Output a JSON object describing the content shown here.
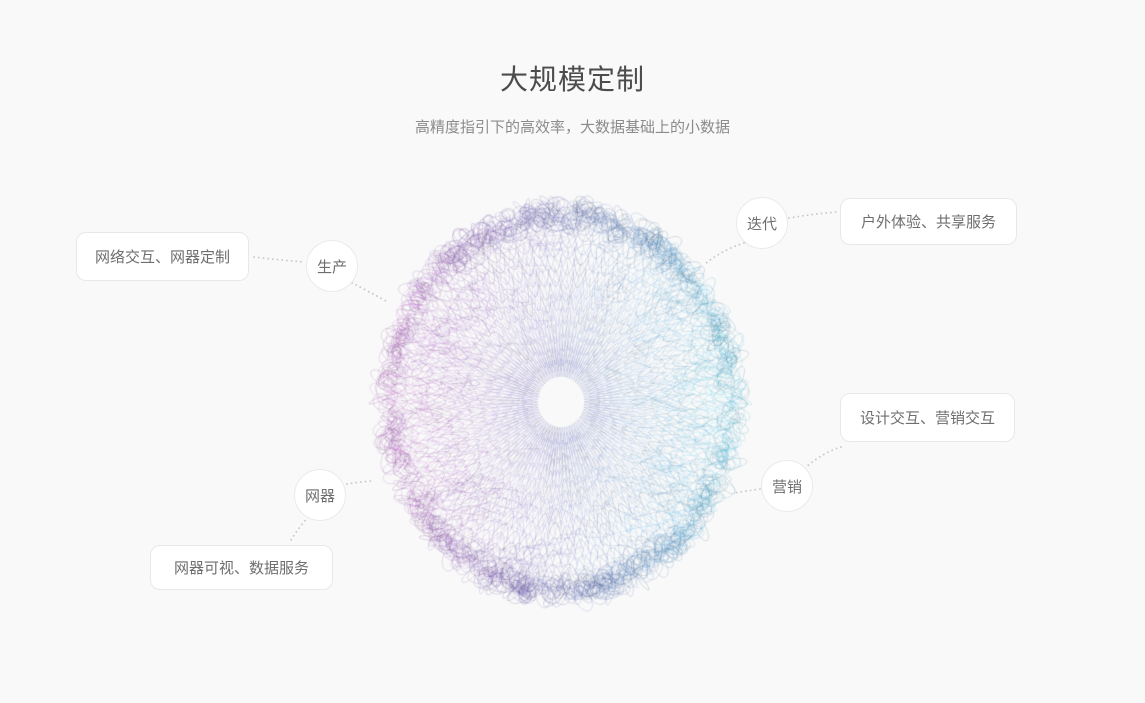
{
  "background": "#f9f9f9",
  "header": {
    "title": "大规模定制",
    "subtitle": "高精度指引下的高效率，大数据基础上的小数据"
  },
  "diagram": {
    "sphere": {
      "color_left": "#bb4fb8",
      "color_center": "#5f63b6",
      "color_right": "#3fc6de"
    },
    "connector_color": "#c8c8c8",
    "nodes": [
      {
        "label": "生产"
      },
      {
        "label": "迭代"
      },
      {
        "label": "营销"
      },
      {
        "label": "网器"
      }
    ],
    "callouts": [
      {
        "label": "网络交互、网器定制"
      },
      {
        "label": "户外体验、共享服务"
      },
      {
        "label": "设计交互、营销交互"
      },
      {
        "label": "网器可视、数据服务"
      }
    ]
  }
}
